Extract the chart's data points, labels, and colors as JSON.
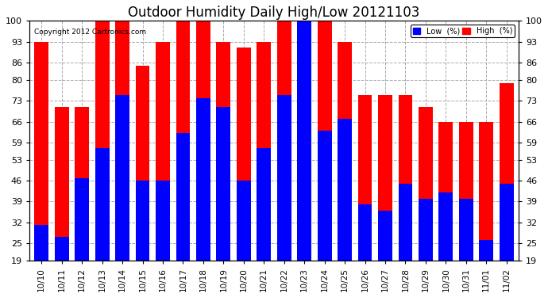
{
  "title": "Outdoor Humidity Daily High/Low 20121103",
  "copyright": "Copyright 2012 Cartronics.com",
  "dates": [
    "10/10",
    "10/11",
    "10/12",
    "10/13",
    "10/14",
    "10/15",
    "10/16",
    "10/17",
    "10/18",
    "10/19",
    "10/20",
    "10/21",
    "10/22",
    "10/23",
    "10/24",
    "10/25",
    "10/26",
    "10/27",
    "10/28",
    "10/29",
    "10/30",
    "10/31",
    "11/01",
    "11/02"
  ],
  "high": [
    93,
    71,
    71,
    100,
    100,
    85,
    93,
    100,
    100,
    93,
    91,
    93,
    100,
    100,
    100,
    93,
    75,
    75,
    75,
    71,
    66,
    66,
    66,
    79
  ],
  "low": [
    31,
    27,
    47,
    57,
    75,
    46,
    46,
    62,
    74,
    71,
    46,
    57,
    75,
    100,
    63,
    67,
    38,
    36,
    45,
    40,
    42,
    40,
    26,
    45
  ],
  "high_color": "#FF0000",
  "low_color": "#0000FF",
  "bg_color": "#FFFFFF",
  "plot_bg": "#FFFFFF",
  "grid_color": "#AAAAAA",
  "yticks": [
    19,
    25,
    32,
    39,
    46,
    53,
    59,
    66,
    73,
    80,
    86,
    93,
    100
  ],
  "ylim_min": 19,
  "ylim_max": 100,
  "title_fontsize": 12,
  "legend_label_low": "Low  (%)",
  "legend_label_high": "High  (%)",
  "bar_width": 0.7
}
